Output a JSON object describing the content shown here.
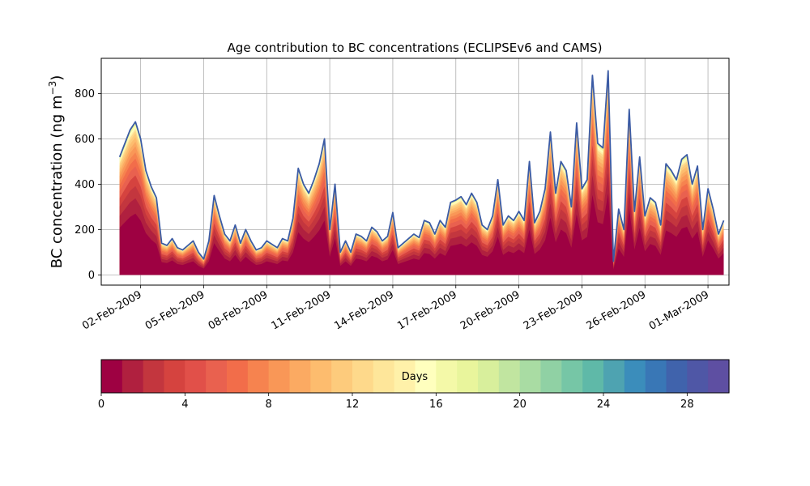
{
  "chart_data": {
    "type": "area",
    "title": "Age contribution to BC concentrations (ECLIPSEv6 and CAMS)",
    "ylabel": "BC concentration (ng m",
    "ylabel_sup": "−3",
    "ylabel_close": ")",
    "xlabel": "",
    "ylim": [
      -45,
      955
    ],
    "xlim": [
      "2009-01-31T03:00",
      "2009-03-02T00:00"
    ],
    "grid": true,
    "yticks": [
      0,
      200,
      400,
      600,
      800
    ],
    "xticks": [
      "02-Feb-2009",
      "05-Feb-2009",
      "08-Feb-2009",
      "11-Feb-2009",
      "14-Feb-2009",
      "17-Feb-2009",
      "20-Feb-2009",
      "23-Feb-2009",
      "26-Feb-2009",
      "01-Mar-2009"
    ],
    "series": [
      {
        "total_color": "#3b5ba5",
        "points": [
          [
            "2009-02-01T00:00",
            520
          ],
          [
            "2009-02-01T06:00",
            580
          ],
          [
            "2009-02-01T12:00",
            640
          ],
          [
            "2009-02-01T18:00",
            675
          ],
          [
            "2009-02-02T00:00",
            600
          ],
          [
            "2009-02-02T06:00",
            460
          ],
          [
            "2009-02-02T12:00",
            390
          ],
          [
            "2009-02-02T18:00",
            340
          ],
          [
            "2009-02-03T00:00",
            140
          ],
          [
            "2009-02-03T06:00",
            130
          ],
          [
            "2009-02-03T12:00",
            160
          ],
          [
            "2009-02-03T18:00",
            120
          ],
          [
            "2009-02-04T00:00",
            110
          ],
          [
            "2009-02-04T06:00",
            130
          ],
          [
            "2009-02-04T12:00",
            150
          ],
          [
            "2009-02-04T18:00",
            100
          ],
          [
            "2009-02-05T00:00",
            70
          ],
          [
            "2009-02-05T06:00",
            150
          ],
          [
            "2009-02-05T12:00",
            350
          ],
          [
            "2009-02-05T18:00",
            260
          ],
          [
            "2009-02-06T00:00",
            180
          ],
          [
            "2009-02-06T06:00",
            150
          ],
          [
            "2009-02-06T12:00",
            220
          ],
          [
            "2009-02-06T18:00",
            140
          ],
          [
            "2009-02-07T00:00",
            200
          ],
          [
            "2009-02-07T06:00",
            150
          ],
          [
            "2009-02-07T12:00",
            110
          ],
          [
            "2009-02-07T18:00",
            120
          ],
          [
            "2009-02-08T00:00",
            150
          ],
          [
            "2009-02-08T06:00",
            135
          ],
          [
            "2009-02-08T12:00",
            120
          ],
          [
            "2009-02-08T18:00",
            160
          ],
          [
            "2009-02-09T00:00",
            150
          ],
          [
            "2009-02-09T06:00",
            250
          ],
          [
            "2009-02-09T12:00",
            470
          ],
          [
            "2009-02-09T18:00",
            400
          ],
          [
            "2009-02-10T00:00",
            360
          ],
          [
            "2009-02-10T06:00",
            420
          ],
          [
            "2009-02-10T12:00",
            490
          ],
          [
            "2009-02-10T18:00",
            600
          ],
          [
            "2009-02-11T00:00",
            200
          ],
          [
            "2009-02-11T06:00",
            400
          ],
          [
            "2009-02-11T12:00",
            100
          ],
          [
            "2009-02-11T18:00",
            150
          ],
          [
            "2009-02-12T00:00",
            100
          ],
          [
            "2009-02-12T06:00",
            180
          ],
          [
            "2009-02-12T12:00",
            170
          ],
          [
            "2009-02-12T18:00",
            150
          ],
          [
            "2009-02-13T00:00",
            210
          ],
          [
            "2009-02-13T06:00",
            190
          ],
          [
            "2009-02-13T12:00",
            150
          ],
          [
            "2009-02-13T18:00",
            170
          ],
          [
            "2009-02-14T00:00",
            275
          ],
          [
            "2009-02-14T06:00",
            120
          ],
          [
            "2009-02-14T12:00",
            140
          ],
          [
            "2009-02-14T18:00",
            160
          ],
          [
            "2009-02-15T00:00",
            180
          ],
          [
            "2009-02-15T06:00",
            165
          ],
          [
            "2009-02-15T12:00",
            240
          ],
          [
            "2009-02-15T18:00",
            230
          ],
          [
            "2009-02-16T00:00",
            180
          ],
          [
            "2009-02-16T06:00",
            240
          ],
          [
            "2009-02-16T12:00",
            210
          ],
          [
            "2009-02-16T18:00",
            320
          ],
          [
            "2009-02-17T00:00",
            330
          ],
          [
            "2009-02-17T06:00",
            345
          ],
          [
            "2009-02-17T12:00",
            310
          ],
          [
            "2009-02-17T18:00",
            360
          ],
          [
            "2009-02-18T00:00",
            320
          ],
          [
            "2009-02-18T06:00",
            220
          ],
          [
            "2009-02-18T12:00",
            200
          ],
          [
            "2009-02-18T18:00",
            260
          ],
          [
            "2009-02-19T00:00",
            420
          ],
          [
            "2009-02-19T06:00",
            220
          ],
          [
            "2009-02-19T12:00",
            260
          ],
          [
            "2009-02-19T18:00",
            240
          ],
          [
            "2009-02-20T00:00",
            280
          ],
          [
            "2009-02-20T06:00",
            240
          ],
          [
            "2009-02-20T12:00",
            500
          ],
          [
            "2009-02-20T18:00",
            230
          ],
          [
            "2009-02-21T00:00",
            280
          ],
          [
            "2009-02-21T06:00",
            380
          ],
          [
            "2009-02-21T12:00",
            630
          ],
          [
            "2009-02-21T18:00",
            360
          ],
          [
            "2009-02-22T00:00",
            500
          ],
          [
            "2009-02-22T06:00",
            460
          ],
          [
            "2009-02-22T12:00",
            300
          ],
          [
            "2009-02-22T18:00",
            670
          ],
          [
            "2009-02-23T00:00",
            380
          ],
          [
            "2009-02-23T06:00",
            420
          ],
          [
            "2009-02-23T12:00",
            880
          ],
          [
            "2009-02-23T18:00",
            580
          ],
          [
            "2009-02-24T00:00",
            560
          ],
          [
            "2009-02-24T06:00",
            900
          ],
          [
            "2009-02-24T12:00",
            60
          ],
          [
            "2009-02-24T18:00",
            290
          ],
          [
            "2009-02-25T00:00",
            200
          ],
          [
            "2009-02-25T06:00",
            730
          ],
          [
            "2009-02-25T12:00",
            280
          ],
          [
            "2009-02-25T18:00",
            520
          ],
          [
            "2009-02-26T00:00",
            260
          ],
          [
            "2009-02-26T06:00",
            340
          ],
          [
            "2009-02-26T12:00",
            320
          ],
          [
            "2009-02-26T18:00",
            220
          ],
          [
            "2009-02-27T00:00",
            490
          ],
          [
            "2009-02-27T06:00",
            460
          ],
          [
            "2009-02-27T12:00",
            420
          ],
          [
            "2009-02-27T18:00",
            510
          ],
          [
            "2009-02-28T00:00",
            530
          ],
          [
            "2009-02-28T06:00",
            400
          ],
          [
            "2009-02-28T12:00",
            480
          ],
          [
            "2009-02-28T18:00",
            200
          ],
          [
            "2009-03-01T00:00",
            380
          ],
          [
            "2009-03-01T06:00",
            290
          ],
          [
            "2009-03-01T12:00",
            180
          ],
          [
            "2009-03-01T18:00",
            240
          ]
        ]
      }
    ],
    "colorbar": {
      "label": "Days",
      "min": 0,
      "max": 30,
      "bins": 30,
      "ticks": [
        0,
        4,
        8,
        12,
        16,
        20,
        24,
        28
      ],
      "colors": [
        "#9e0142",
        "#b0203f",
        "#c3363e",
        "#d5433f",
        "#e15049",
        "#e9614f",
        "#f26d4a",
        "#f6834f",
        "#f99757",
        "#fbaa62",
        "#fdbc6e",
        "#fdcb7c",
        "#fed98b",
        "#fee69a",
        "#fff1a9",
        "#ffffbe",
        "#f4f9a8",
        "#e9f59c",
        "#d8ef9c",
        "#c1e5a0",
        "#a9dca3",
        "#90d1a4",
        "#76c6a6",
        "#5fb9a8",
        "#4ea3b1",
        "#3b8dbb",
        "#3977b6",
        "#4063ac",
        "#4f57a6",
        "#5e4fa2"
      ]
    }
  }
}
